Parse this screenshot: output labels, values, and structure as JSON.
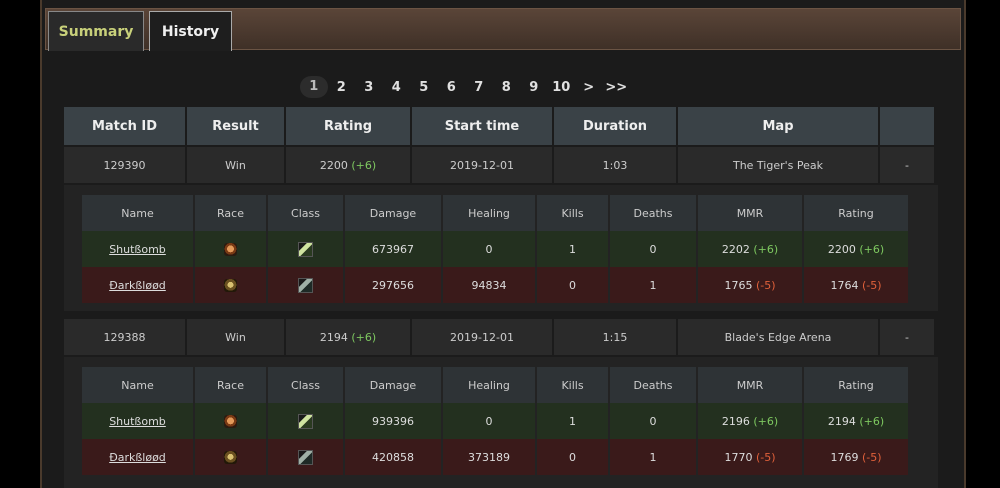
{
  "tabs": {
    "summary": "Summary",
    "history": "History"
  },
  "pagination": {
    "pages": [
      "1",
      "2",
      "3",
      "4",
      "5",
      "6",
      "7",
      "8",
      "9",
      "10"
    ],
    "next": ">",
    "last": ">>"
  },
  "match_columns": [
    "Match ID",
    "Result",
    "Rating",
    "Start time",
    "Duration",
    "Map",
    ""
  ],
  "player_columns": [
    "Name",
    "Race",
    "Class",
    "Damage",
    "Healing",
    "Kills",
    "Deaths",
    "MMR",
    "Rating"
  ],
  "matches": [
    {
      "id": "129390",
      "result": "Win",
      "rating": "2200",
      "rating_delta": "(+6)",
      "start": "2019-12-01",
      "duration": "1:03",
      "map": "The Tiger's Peak",
      "extra": "-",
      "players": [
        {
          "name": "Shutßomb",
          "race_icon": "orc-icon",
          "class_icon": "rogue-icon",
          "damage": "673967",
          "healing": "0",
          "kills": "1",
          "deaths": "0",
          "mmr": "2202",
          "mmr_delta": "(+6)",
          "rating": "2200",
          "rating_delta": "(+6)"
        },
        {
          "name": "Ðarkßløød",
          "race_icon": "tauren-icon",
          "class_icon": "shaman-icon",
          "damage": "297656",
          "healing": "94834",
          "kills": "0",
          "deaths": "1",
          "mmr": "1765",
          "mmr_delta": "(-5)",
          "rating": "1764",
          "rating_delta": "(-5)"
        }
      ]
    },
    {
      "id": "129388",
      "result": "Win",
      "rating": "2194",
      "rating_delta": "(+6)",
      "start": "2019-12-01",
      "duration": "1:15",
      "map": "Blade's Edge Arena",
      "extra": "-",
      "players": [
        {
          "name": "Shutßomb",
          "race_icon": "orc-icon",
          "class_icon": "rogue-icon",
          "damage": "939396",
          "healing": "0",
          "kills": "1",
          "deaths": "0",
          "mmr": "2196",
          "mmr_delta": "(+6)",
          "rating": "2194",
          "rating_delta": "(+6)"
        },
        {
          "name": "Ðarkßløød",
          "race_icon": "tauren-icon",
          "class_icon": "shaman-icon",
          "damage": "420858",
          "healing": "373189",
          "kills": "0",
          "deaths": "1",
          "mmr": "1770",
          "mmr_delta": "(-5)",
          "rating": "1769",
          "rating_delta": "(-5)"
        }
      ]
    }
  ],
  "colors": {
    "positive": "#7ec860",
    "negative": "#e0603a",
    "tab_active": "#c8d07a"
  }
}
